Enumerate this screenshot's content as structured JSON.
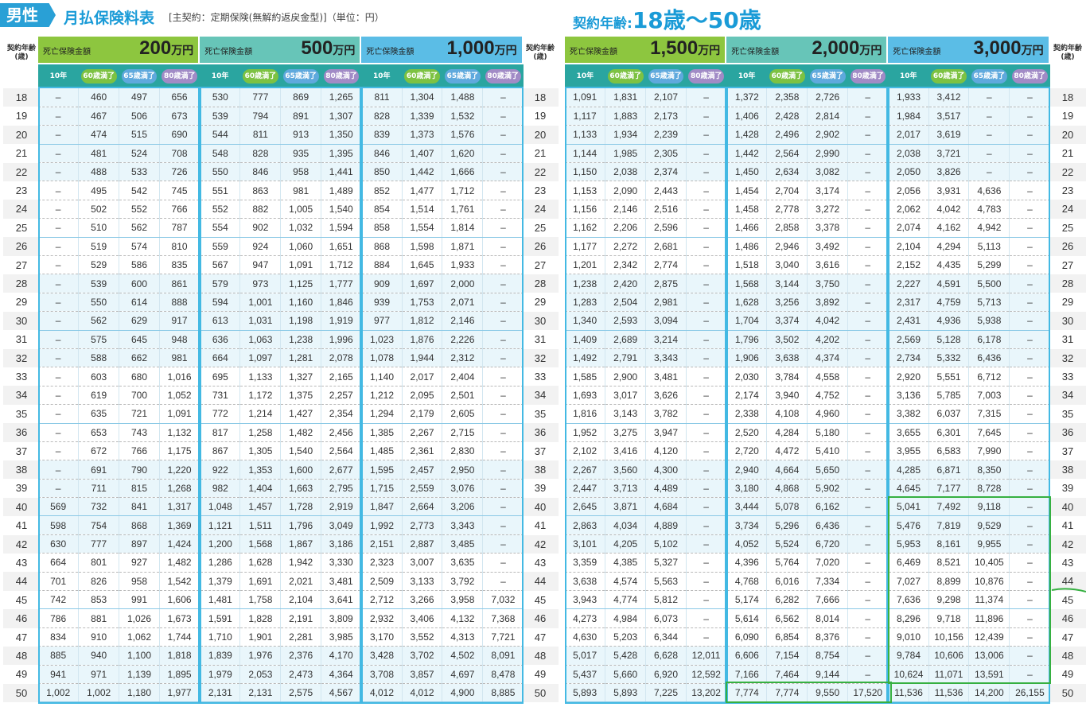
{
  "header": {
    "gender": "男性",
    "title": "月払保険料表",
    "subtitle": "[主契約：定期保険(無解約返戻金型)]（単位：円）",
    "age_label": "契約年齢:",
    "age_range": "18歳～50歳"
  },
  "age_col_label": "契約年齢(歳)",
  "amount_label": "死亡保険金額",
  "term_labels": [
    "10年",
    "60歳満了",
    "65歳満了",
    "80歳満了"
  ],
  "colors": {
    "accent": "#1a9bd7",
    "header_green": "#8dc63f",
    "header_teal": "#67c5b8",
    "header_blue": "#5bbde6",
    "pill_teal": "#2aa5a0",
    "pill_green": "#7dc242",
    "pill_blue": "#5fa9dd",
    "pill_purple": "#a18bc6",
    "highlight": "#36b041"
  },
  "ages": [
    "18",
    "19",
    "20",
    "21",
    "22",
    "23",
    "24",
    "25",
    "26",
    "27",
    "28",
    "29",
    "30",
    "31",
    "32",
    "33",
    "34",
    "35",
    "36",
    "37",
    "38",
    "39",
    "40",
    "41",
    "42",
    "43",
    "44",
    "45",
    "46",
    "47",
    "48",
    "49",
    "50"
  ],
  "left_block": {
    "amounts": [
      {
        "value": "200",
        "unit": "万円"
      },
      {
        "value": "500",
        "unit": "万円"
      },
      {
        "value": "1,000",
        "unit": "万円"
      }
    ],
    "rows": [
      [
        "–",
        "460",
        "497",
        "656",
        "530",
        "777",
        "869",
        "1,265",
        "811",
        "1,304",
        "1,488",
        "–"
      ],
      [
        "–",
        "467",
        "506",
        "673",
        "539",
        "794",
        "891",
        "1,307",
        "828",
        "1,339",
        "1,532",
        "–"
      ],
      [
        "–",
        "474",
        "515",
        "690",
        "544",
        "811",
        "913",
        "1,350",
        "839",
        "1,373",
        "1,576",
        "–"
      ],
      [
        "–",
        "481",
        "524",
        "708",
        "548",
        "828",
        "935",
        "1,395",
        "846",
        "1,407",
        "1,620",
        "–"
      ],
      [
        "–",
        "488",
        "533",
        "726",
        "550",
        "846",
        "958",
        "1,441",
        "850",
        "1,442",
        "1,666",
        "–"
      ],
      [
        "–",
        "495",
        "542",
        "745",
        "551",
        "863",
        "981",
        "1,489",
        "852",
        "1,477",
        "1,712",
        "–"
      ],
      [
        "–",
        "502",
        "552",
        "766",
        "552",
        "882",
        "1,005",
        "1,540",
        "854",
        "1,514",
        "1,761",
        "–"
      ],
      [
        "–",
        "510",
        "562",
        "787",
        "554",
        "902",
        "1,032",
        "1,594",
        "858",
        "1,554",
        "1,814",
        "–"
      ],
      [
        "–",
        "519",
        "574",
        "810",
        "559",
        "924",
        "1,060",
        "1,651",
        "868",
        "1,598",
        "1,871",
        "–"
      ],
      [
        "–",
        "529",
        "586",
        "835",
        "567",
        "947",
        "1,091",
        "1,712",
        "884",
        "1,645",
        "1,933",
        "–"
      ],
      [
        "–",
        "539",
        "600",
        "861",
        "579",
        "973",
        "1,125",
        "1,777",
        "909",
        "1,697",
        "2,000",
        "–"
      ],
      [
        "–",
        "550",
        "614",
        "888",
        "594",
        "1,001",
        "1,160",
        "1,846",
        "939",
        "1,753",
        "2,071",
        "–"
      ],
      [
        "–",
        "562",
        "629",
        "917",
        "613",
        "1,031",
        "1,198",
        "1,919",
        "977",
        "1,812",
        "2,146",
        "–"
      ],
      [
        "–",
        "575",
        "645",
        "948",
        "636",
        "1,063",
        "1,238",
        "1,996",
        "1,023",
        "1,876",
        "2,226",
        "–"
      ],
      [
        "–",
        "588",
        "662",
        "981",
        "664",
        "1,097",
        "1,281",
        "2,078",
        "1,078",
        "1,944",
        "2,312",
        "–"
      ],
      [
        "–",
        "603",
        "680",
        "1,016",
        "695",
        "1,133",
        "1,327",
        "2,165",
        "1,140",
        "2,017",
        "2,404",
        "–"
      ],
      [
        "–",
        "619",
        "700",
        "1,052",
        "731",
        "1,172",
        "1,375",
        "2,257",
        "1,212",
        "2,095",
        "2,501",
        "–"
      ],
      [
        "–",
        "635",
        "721",
        "1,091",
        "772",
        "1,214",
        "1,427",
        "2,354",
        "1,294",
        "2,179",
        "2,605",
        "–"
      ],
      [
        "–",
        "653",
        "743",
        "1,132",
        "817",
        "1,258",
        "1,482",
        "2,456",
        "1,385",
        "2,267",
        "2,715",
        "–"
      ],
      [
        "–",
        "672",
        "766",
        "1,175",
        "867",
        "1,305",
        "1,540",
        "2,564",
        "1,485",
        "2,361",
        "2,830",
        "–"
      ],
      [
        "–",
        "691",
        "790",
        "1,220",
        "922",
        "1,353",
        "1,600",
        "2,677",
        "1,595",
        "2,457",
        "2,950",
        "–"
      ],
      [
        "–",
        "711",
        "815",
        "1,268",
        "982",
        "1,404",
        "1,663",
        "2,795",
        "1,715",
        "2,559",
        "3,076",
        "–"
      ],
      [
        "569",
        "732",
        "841",
        "1,317",
        "1,048",
        "1,457",
        "1,728",
        "2,919",
        "1,847",
        "2,664",
        "3,206",
        "–"
      ],
      [
        "598",
        "754",
        "868",
        "1,369",
        "1,121",
        "1,511",
        "1,796",
        "3,049",
        "1,992",
        "2,773",
        "3,343",
        "–"
      ],
      [
        "630",
        "777",
        "897",
        "1,424",
        "1,200",
        "1,568",
        "1,867",
        "3,186",
        "2,151",
        "2,887",
        "3,485",
        "–"
      ],
      [
        "664",
        "801",
        "927",
        "1,482",
        "1,286",
        "1,628",
        "1,942",
        "3,330",
        "2,323",
        "3,007",
        "3,635",
        "–"
      ],
      [
        "701",
        "826",
        "958",
        "1,542",
        "1,379",
        "1,691",
        "2,021",
        "3,481",
        "2,509",
        "3,133",
        "3,792",
        "–"
      ],
      [
        "742",
        "853",
        "991",
        "1,606",
        "1,481",
        "1,758",
        "2,104",
        "3,641",
        "2,712",
        "3,266",
        "3,958",
        "7,032"
      ],
      [
        "786",
        "881",
        "1,026",
        "1,673",
        "1,591",
        "1,828",
        "2,191",
        "3,809",
        "2,932",
        "3,406",
        "4,132",
        "7,368"
      ],
      [
        "834",
        "910",
        "1,062",
        "1,744",
        "1,710",
        "1,901",
        "2,281",
        "3,985",
        "3,170",
        "3,552",
        "4,313",
        "7,721"
      ],
      [
        "885",
        "940",
        "1,100",
        "1,818",
        "1,839",
        "1,976",
        "2,376",
        "4,170",
        "3,428",
        "3,702",
        "4,502",
        "8,091"
      ],
      [
        "941",
        "971",
        "1,139",
        "1,895",
        "1,979",
        "2,053",
        "2,473",
        "4,364",
        "3,708",
        "3,857",
        "4,697",
        "8,478"
      ],
      [
        "1,002",
        "1,002",
        "1,180",
        "1,977",
        "2,131",
        "2,131",
        "2,575",
        "4,567",
        "4,012",
        "4,012",
        "4,900",
        "8,885"
      ]
    ]
  },
  "right_block": {
    "amounts": [
      {
        "value": "1,500",
        "unit": "万円"
      },
      {
        "value": "2,000",
        "unit": "万円"
      },
      {
        "value": "3,000",
        "unit": "万円"
      }
    ],
    "rows": [
      [
        "1,091",
        "1,831",
        "2,107",
        "–",
        "1,372",
        "2,358",
        "2,726",
        "–",
        "1,933",
        "3,412",
        "–",
        "–"
      ],
      [
        "1,117",
        "1,883",
        "2,173",
        "–",
        "1,406",
        "2,428",
        "2,814",
        "–",
        "1,984",
        "3,517",
        "–",
        "–"
      ],
      [
        "1,133",
        "1,934",
        "2,239",
        "–",
        "1,428",
        "2,496",
        "2,902",
        "–",
        "2,017",
        "3,619",
        "–",
        "–"
      ],
      [
        "1,144",
        "1,985",
        "2,305",
        "–",
        "1,442",
        "2,564",
        "2,990",
        "–",
        "2,038",
        "3,721",
        "–",
        "–"
      ],
      [
        "1,150",
        "2,038",
        "2,374",
        "–",
        "1,450",
        "2,634",
        "3,082",
        "–",
        "2,050",
        "3,826",
        "–",
        "–"
      ],
      [
        "1,153",
        "2,090",
        "2,443",
        "–",
        "1,454",
        "2,704",
        "3,174",
        "–",
        "2,056",
        "3,931",
        "4,636",
        "–"
      ],
      [
        "1,156",
        "2,146",
        "2,516",
        "–",
        "1,458",
        "2,778",
        "3,272",
        "–",
        "2,062",
        "4,042",
        "4,783",
        "–"
      ],
      [
        "1,162",
        "2,206",
        "2,596",
        "–",
        "1,466",
        "2,858",
        "3,378",
        "–",
        "2,074",
        "4,162",
        "4,942",
        "–"
      ],
      [
        "1,177",
        "2,272",
        "2,681",
        "–",
        "1,486",
        "2,946",
        "3,492",
        "–",
        "2,104",
        "4,294",
        "5,113",
        "–"
      ],
      [
        "1,201",
        "2,342",
        "2,774",
        "–",
        "1,518",
        "3,040",
        "3,616",
        "–",
        "2,152",
        "4,435",
        "5,299",
        "–"
      ],
      [
        "1,238",
        "2,420",
        "2,875",
        "–",
        "1,568",
        "3,144",
        "3,750",
        "–",
        "2,227",
        "4,591",
        "5,500",
        "–"
      ],
      [
        "1,283",
        "2,504",
        "2,981",
        "–",
        "1,628",
        "3,256",
        "3,892",
        "–",
        "2,317",
        "4,759",
        "5,713",
        "–"
      ],
      [
        "1,340",
        "2,593",
        "3,094",
        "–",
        "1,704",
        "3,374",
        "4,042",
        "–",
        "2,431",
        "4,936",
        "5,938",
        "–"
      ],
      [
        "1,409",
        "2,689",
        "3,214",
        "–",
        "1,796",
        "3,502",
        "4,202",
        "–",
        "2,569",
        "5,128",
        "6,178",
        "–"
      ],
      [
        "1,492",
        "2,791",
        "3,343",
        "–",
        "1,906",
        "3,638",
        "4,374",
        "–",
        "2,734",
        "5,332",
        "6,436",
        "–"
      ],
      [
        "1,585",
        "2,900",
        "3,481",
        "–",
        "2,030",
        "3,784",
        "4,558",
        "–",
        "2,920",
        "5,551",
        "6,712",
        "–"
      ],
      [
        "1,693",
        "3,017",
        "3,626",
        "–",
        "2,174",
        "3,940",
        "4,752",
        "–",
        "3,136",
        "5,785",
        "7,003",
        "–"
      ],
      [
        "1,816",
        "3,143",
        "3,782",
        "–",
        "2,338",
        "4,108",
        "4,960",
        "–",
        "3,382",
        "6,037",
        "7,315",
        "–"
      ],
      [
        "1,952",
        "3,275",
        "3,947",
        "–",
        "2,520",
        "4,284",
        "5,180",
        "–",
        "3,655",
        "6,301",
        "7,645",
        "–"
      ],
      [
        "2,102",
        "3,416",
        "4,120",
        "–",
        "2,720",
        "4,472",
        "5,410",
        "–",
        "3,955",
        "6,583",
        "7,990",
        "–"
      ],
      [
        "2,267",
        "3,560",
        "4,300",
        "–",
        "2,940",
        "4,664",
        "5,650",
        "–",
        "4,285",
        "6,871",
        "8,350",
        "–"
      ],
      [
        "2,447",
        "3,713",
        "4,489",
        "–",
        "3,180",
        "4,868",
        "5,902",
        "–",
        "4,645",
        "7,177",
        "8,728",
        "–"
      ],
      [
        "2,645",
        "3,871",
        "4,684",
        "–",
        "3,444",
        "5,078",
        "6,162",
        "–",
        "5,041",
        "7,492",
        "9,118",
        "–"
      ],
      [
        "2,863",
        "4,034",
        "4,889",
        "–",
        "3,734",
        "5,296",
        "6,436",
        "–",
        "5,476",
        "7,819",
        "9,529",
        "–"
      ],
      [
        "3,101",
        "4,205",
        "5,102",
        "–",
        "4,052",
        "5,524",
        "6,720",
        "–",
        "5,953",
        "8,161",
        "9,955",
        "–"
      ],
      [
        "3,359",
        "4,385",
        "5,327",
        "–",
        "4,396",
        "5,764",
        "7,020",
        "–",
        "6,469",
        "8,521",
        "10,405",
        "–"
      ],
      [
        "3,638",
        "4,574",
        "5,563",
        "–",
        "4,768",
        "6,016",
        "7,334",
        "–",
        "7,027",
        "8,899",
        "10,876",
        "–"
      ],
      [
        "3,943",
        "4,774",
        "5,812",
        "–",
        "5,174",
        "6,282",
        "7,666",
        "–",
        "7,636",
        "9,298",
        "11,374",
        "–"
      ],
      [
        "4,273",
        "4,984",
        "6,073",
        "–",
        "5,614",
        "6,562",
        "8,014",
        "–",
        "8,296",
        "9,718",
        "11,896",
        "–"
      ],
      [
        "4,630",
        "5,203",
        "6,344",
        "–",
        "6,090",
        "6,854",
        "8,376",
        "–",
        "9,010",
        "10,156",
        "12,439",
        "–"
      ],
      [
        "5,017",
        "5,428",
        "6,628",
        "12,011",
        "6,606",
        "7,154",
        "8,754",
        "–",
        "9,784",
        "10,606",
        "13,006",
        "–"
      ],
      [
        "5,437",
        "5,660",
        "6,920",
        "12,592",
        "7,166",
        "7,464",
        "9,144",
        "–",
        "10,624",
        "11,071",
        "13,591",
        "–"
      ],
      [
        "5,893",
        "5,893",
        "7,225",
        "13,202",
        "7,774",
        "7,774",
        "9,550",
        "17,520",
        "11,536",
        "11,536",
        "14,200",
        "26,155"
      ]
    ]
  }
}
